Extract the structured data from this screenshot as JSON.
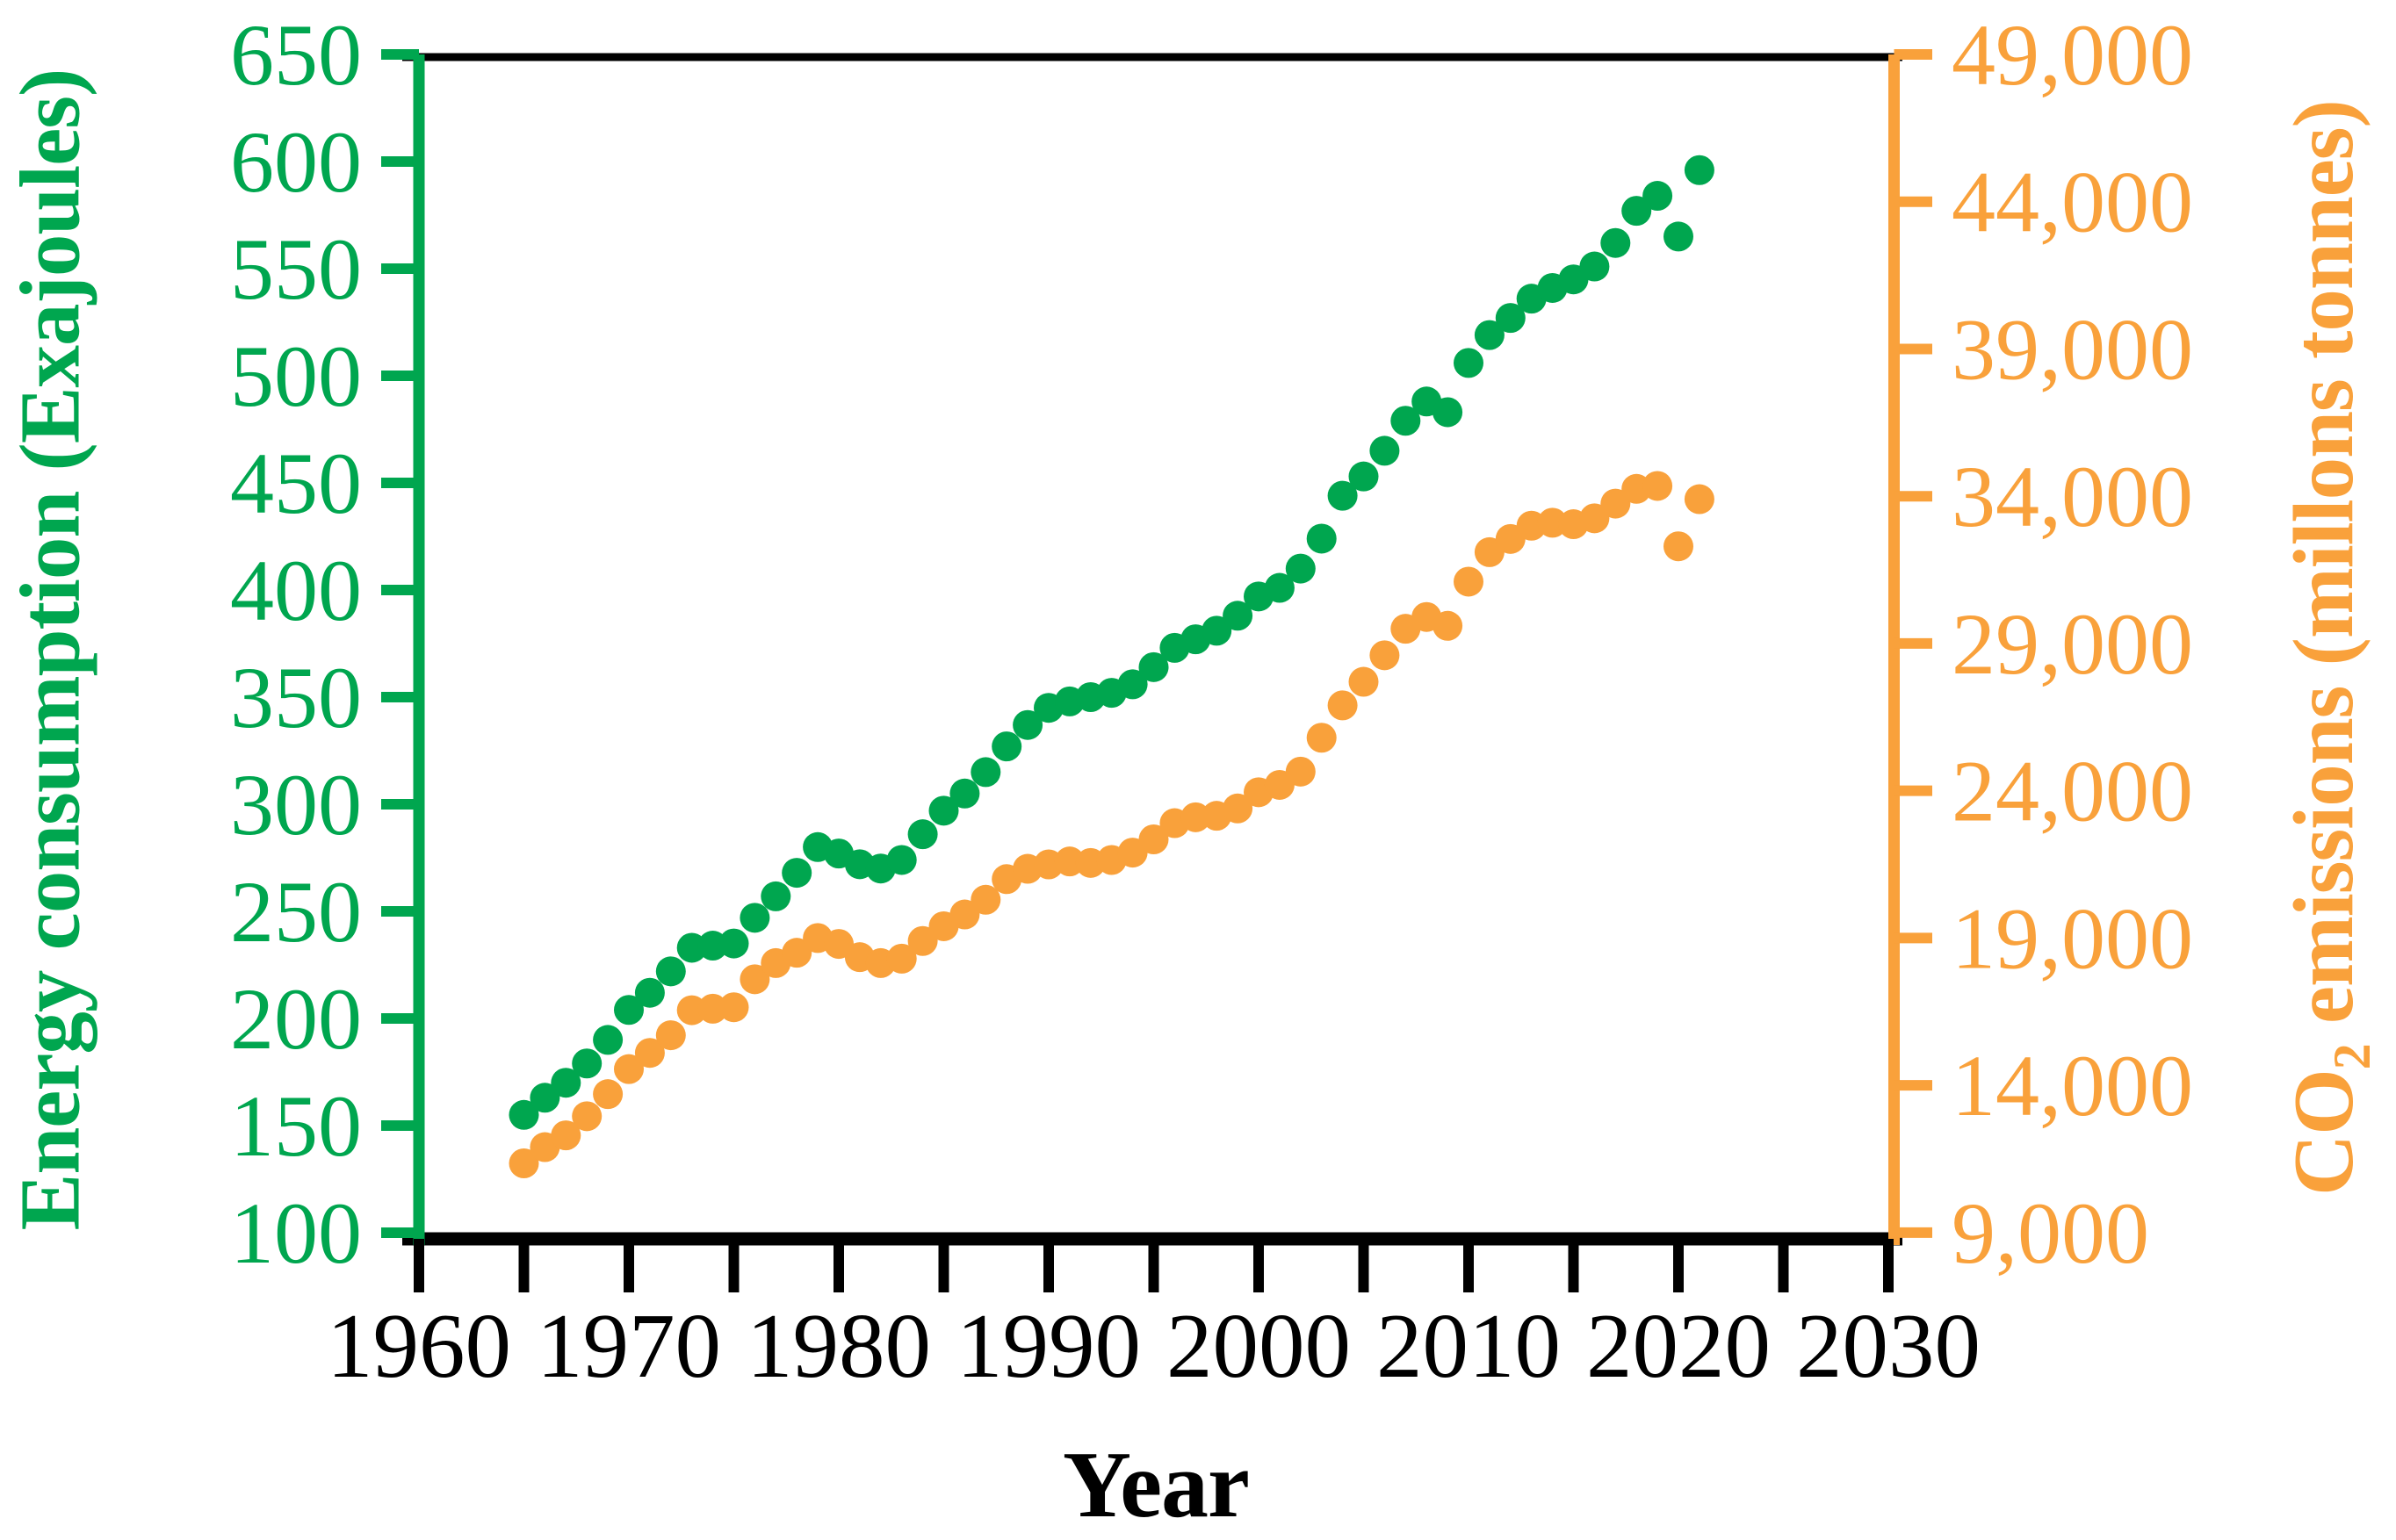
{
  "figure": {
    "background": "#FFFFFF",
    "x_axis": {
      "title": "Year",
      "color": "#000000",
      "tick_step_years": 5,
      "range": [
        1960,
        2030
      ],
      "label_years": [
        1960,
        1970,
        1980,
        1990,
        2000,
        2010,
        2020,
        2030
      ],
      "tick_labels": [
        "1960",
        "1970",
        "1980",
        "1990",
        "2000",
        "2010",
        "2020",
        "2030"
      ]
    },
    "left_axis": {
      "title": "Energy consumption (Exajoules)",
      "color": "#00A64F",
      "range": [
        100,
        650
      ],
      "tick_values": [
        650,
        600,
        550,
        500,
        450,
        400,
        350,
        300,
        250,
        200,
        150,
        100
      ],
      "tick_labels": [
        "650",
        "600",
        "550",
        "500",
        "450",
        "400",
        "350",
        "300",
        "250",
        "200",
        "150",
        "100"
      ]
    },
    "right_axis": {
      "title_main": "CO",
      "title_subscript": "2",
      "title_rest": " emissions (millons tonnes)",
      "color": "#F9A13B",
      "range": [
        9000,
        49000
      ],
      "tick_values": [
        49000,
        44000,
        39000,
        34000,
        29000,
        24000,
        19000,
        14000,
        9000
      ],
      "tick_labels": [
        "49,000",
        "44,000",
        "39,000",
        "34,000",
        "29,000",
        "24,000",
        "19,000",
        "14,000",
        "9,000"
      ]
    }
  },
  "chart_data": {
    "type": "scatter",
    "title": "",
    "xlabel": "Year",
    "ylabel_left": "Energy consumption (Exajoules)",
    "ylabel_right": "CO2 emissions (millons tonnes)",
    "x_range": [
      1960,
      2030
    ],
    "left_ylim": [
      100,
      650
    ],
    "right_ylim": [
      9000,
      49000
    ],
    "grid": false,
    "legend_position": "none",
    "marker": "circle",
    "x": [
      1965,
      1966,
      1967,
      1968,
      1969,
      1970,
      1971,
      1972,
      1973,
      1974,
      1975,
      1976,
      1977,
      1978,
      1979,
      1980,
      1981,
      1982,
      1983,
      1984,
      1985,
      1986,
      1987,
      1988,
      1989,
      1990,
      1991,
      1992,
      1993,
      1994,
      1995,
      1996,
      1997,
      1998,
      1999,
      2000,
      2001,
      2002,
      2003,
      2004,
      2005,
      2006,
      2007,
      2008,
      2009,
      2010,
      2011,
      2012,
      2013,
      2014,
      2015,
      2016,
      2017,
      2018,
      2019,
      2020,
      2021
    ],
    "series": [
      {
        "name": "Energy consumption",
        "axis": "left",
        "unit": "Exajoules",
        "color": "#00A64F",
        "values": [
          155,
          163,
          170,
          179,
          190,
          204,
          212,
          222,
          233,
          234,
          235,
          247,
          257,
          268,
          280,
          277,
          272,
          270,
          274,
          286,
          297,
          305,
          315,
          327,
          337,
          345,
          348,
          350,
          352,
          356,
          364,
          373,
          377,
          381,
          388,
          397,
          401,
          410,
          424,
          444,
          453,
          465,
          479,
          488,
          483,
          506,
          519,
          527,
          536,
          541,
          545,
          551,
          562,
          577,
          584,
          565,
          596
        ]
      },
      {
        "name": "CO2 emissions",
        "axis": "right",
        "unit": "millons tonnes",
        "color": "#F9A13B",
        "values": [
          11350,
          11900,
          12300,
          12950,
          13700,
          14550,
          15100,
          15700,
          16550,
          16600,
          16650,
          17600,
          18150,
          18500,
          19000,
          18800,
          18350,
          18150,
          18300,
          18900,
          19400,
          19800,
          20300,
          21000,
          21350,
          21500,
          21600,
          21550,
          21650,
          21900,
          22350,
          22900,
          23100,
          23150,
          23400,
          23950,
          24200,
          24650,
          25800,
          26900,
          27700,
          28600,
          29500,
          29900,
          29600,
          31100,
          32100,
          32550,
          33000,
          33100,
          33050,
          33250,
          33750,
          34250,
          34350,
          32300,
          33900
        ]
      }
    ]
  }
}
